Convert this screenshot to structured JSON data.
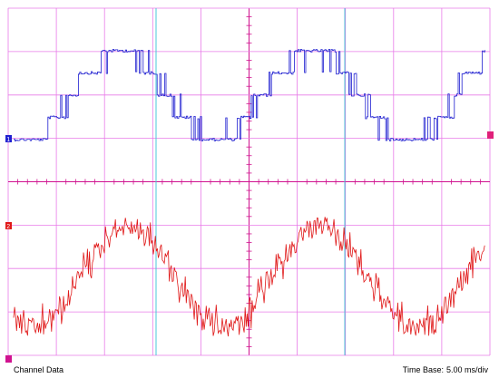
{
  "footer": {
    "left_label": "Channel Data",
    "time_base_label": "Time Base:",
    "time_base_value": "5.00 ms/div"
  },
  "colors": {
    "grid": "#e87be8",
    "grid_axis": "#d0128f",
    "cursor": "#48c8d8",
    "channel_1": "#2020d0",
    "channel_2": "#e01818",
    "marker_left": "#2020d0",
    "marker_right": "#e0207a",
    "marker_bottom": "#d0128f"
  },
  "channels": [
    {
      "name": "1",
      "color": "#2020d0"
    },
    {
      "name": "2",
      "color": "#e01818"
    }
  ],
  "cursors": [
    {
      "name": "cursor-a"
    },
    {
      "name": "cursor-b"
    }
  ]
}
